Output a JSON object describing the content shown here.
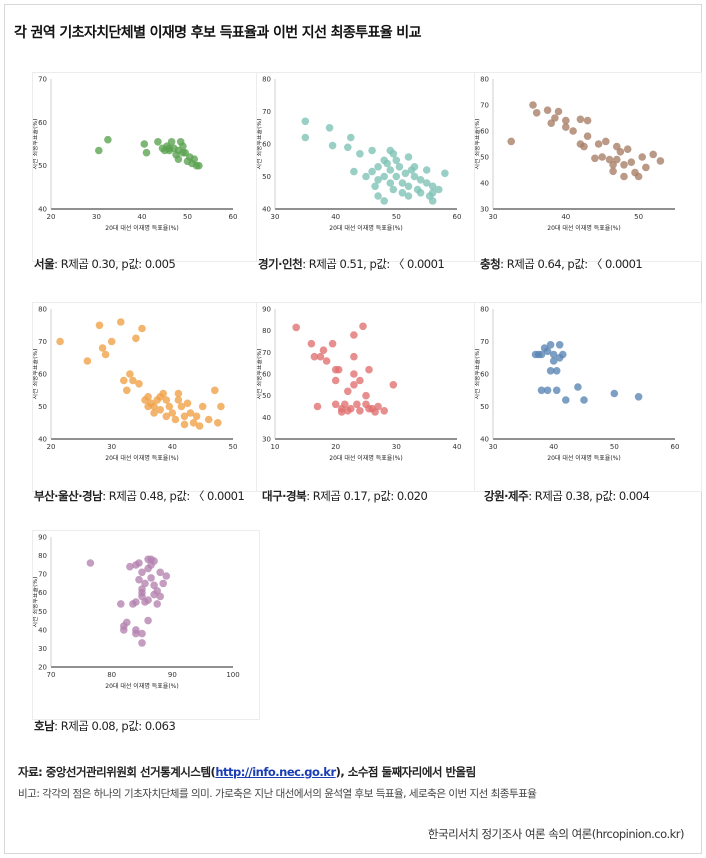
{
  "title": "각 권역 기초자치단체별 이재명 후보 득표율과 이번 지선 최종투표율 비교",
  "source": {
    "prefix": "자료: 중앙선거관리위원회 선거통계시스템(",
    "link": "http://info.nec.go.kr",
    "suffix": "), 소수점 둘째자리에서 반올림"
  },
  "note": "비고: 각각의 점은 하나의 기초자치단체를 의미. 가로축은 지난 대선에서의 윤석열 후보 득표율, 세로축은 이번 지선 최종투표율",
  "credit": "한국리서치 정기조사 여론 속의 여론(hrcopinion.co.kr)",
  "chart_data": [
    {
      "type": "scatter",
      "region": "서울",
      "stat": ": R제곱 0.30, p값: 0.005",
      "color": "#5aa14f",
      "xlabel": "20대 대선 이재명 득표율(%)",
      "ylabel": "지선 최종투표율(%)",
      "xlim": [
        20,
        60
      ],
      "ylim": [
        40,
        70
      ],
      "xticks": [
        20,
        30,
        40,
        50,
        60
      ],
      "yticks": [
        40,
        50,
        60,
        70
      ],
      "points": [
        [
          30.5,
          53.5
        ],
        [
          32.5,
          56
        ],
        [
          40.5,
          55
        ],
        [
          41,
          53
        ],
        [
          43.5,
          55.5
        ],
        [
          44.5,
          54
        ],
        [
          45,
          53.5
        ],
        [
          45.5,
          54.5
        ],
        [
          46,
          54
        ],
        [
          46.5,
          55.5
        ],
        [
          47,
          54
        ],
        [
          47.5,
          52.5
        ],
        [
          48,
          51.5
        ],
        [
          48,
          53.5
        ],
        [
          48.5,
          55.5
        ],
        [
          49,
          54.5
        ],
        [
          49,
          53
        ],
        [
          49.5,
          53
        ],
        [
          50,
          51
        ],
        [
          50.5,
          52
        ],
        [
          51,
          50.5
        ],
        [
          51.5,
          51.5
        ],
        [
          52,
          50
        ],
        [
          52.5,
          50
        ],
        [
          46,
          53.5
        ]
      ]
    },
    {
      "type": "scatter",
      "region": "경기·인천",
      "stat": ": R제곱 0.51, p값: 〈 0.0001",
      "color": "#7ec2b6",
      "xlabel": "20대 대선 이재명 득표율(%)",
      "ylabel": "지선 최종투표율(%)",
      "xlim": [
        30,
        60
      ],
      "ylim": [
        40,
        80
      ],
      "xticks": [
        30,
        40,
        50,
        60
      ],
      "yticks": [
        40,
        50,
        60,
        70,
        80
      ],
      "points": [
        [
          35,
          67
        ],
        [
          35,
          62
        ],
        [
          39,
          65
        ],
        [
          39.5,
          59.5
        ],
        [
          42,
          59
        ],
        [
          42.5,
          62
        ],
        [
          43,
          51.5
        ],
        [
          44,
          57
        ],
        [
          45,
          50
        ],
        [
          46,
          51.5
        ],
        [
          46,
          58
        ],
        [
          46.5,
          47
        ],
        [
          47,
          53
        ],
        [
          47,
          44
        ],
        [
          48,
          55
        ],
        [
          48,
          50
        ],
        [
          48.5,
          54
        ],
        [
          49,
          58
        ],
        [
          49,
          52
        ],
        [
          49,
          48
        ],
        [
          49.5,
          46
        ],
        [
          50,
          55
        ],
        [
          50,
          50
        ],
        [
          50.5,
          53
        ],
        [
          51,
          48
        ],
        [
          51,
          45
        ],
        [
          51.5,
          51
        ],
        [
          52,
          56
        ],
        [
          52,
          47
        ],
        [
          52,
          44
        ],
        [
          52.5,
          52
        ],
        [
          53,
          50
        ],
        [
          53,
          53
        ],
        [
          53.5,
          46
        ],
        [
          54,
          49
        ],
        [
          54,
          45
        ],
        [
          55,
          48
        ],
        [
          55,
          52
        ],
        [
          55.5,
          44
        ],
        [
          56,
          45
        ],
        [
          56,
          47
        ],
        [
          57,
          46
        ],
        [
          58,
          51
        ],
        [
          56,
          42.5
        ],
        [
          49.5,
          57
        ],
        [
          47,
          49
        ],
        [
          48,
          42.5
        ]
      ]
    },
    {
      "type": "scatter",
      "region": "충청",
      "stat": ": R제곱 0.64, p값: 〈 0.0001",
      "color": "#a67c64",
      "xlabel": "20대 대선 이재명 득표율(%)",
      "ylabel": "지선 최종투표율(%)",
      "xlim": [
        30,
        55
      ],
      "ylim": [
        30,
        80
      ],
      "xticks": [
        30,
        40,
        50
      ],
      "yticks": [
        30,
        40,
        50,
        60,
        70,
        80
      ],
      "points": [
        [
          32.5,
          56
        ],
        [
          35.5,
          70
        ],
        [
          36,
          67
        ],
        [
          37.5,
          68
        ],
        [
          38,
          63
        ],
        [
          38.5,
          65
        ],
        [
          39,
          67.5
        ],
        [
          40,
          61.5
        ],
        [
          40,
          64
        ],
        [
          41,
          60
        ],
        [
          42,
          55
        ],
        [
          42,
          64.5
        ],
        [
          42.5,
          54
        ],
        [
          43,
          64
        ],
        [
          43,
          58
        ],
        [
          44,
          49.5
        ],
        [
          44.5,
          55
        ],
        [
          45,
          50
        ],
        [
          45.5,
          56
        ],
        [
          46,
          49
        ],
        [
          46.5,
          47
        ],
        [
          47,
          49
        ],
        [
          47,
          54
        ],
        [
          47.5,
          52
        ],
        [
          48,
          47
        ],
        [
          48,
          42.5
        ],
        [
          48.5,
          53
        ],
        [
          49,
          48
        ],
        [
          49.5,
          44
        ],
        [
          50,
          42.5
        ],
        [
          50.5,
          50
        ],
        [
          51,
          46
        ],
        [
          52,
          51
        ],
        [
          53,
          48.5
        ],
        [
          46.5,
          44.5
        ]
      ]
    },
    {
      "type": "scatter",
      "region": "부산·울산·경남",
      "stat": ": R제곱 0.48, p값: 〈 0.0001",
      "color": "#f0a045",
      "xlabel": "20대 대선 이재명 득표율(%)",
      "ylabel": "지선 최종투표율(%)",
      "xlim": [
        20,
        50
      ],
      "ylim": [
        40,
        80
      ],
      "xticks": [
        20,
        30,
        40,
        50
      ],
      "yticks": [
        40,
        50,
        60,
        70,
        80
      ],
      "points": [
        [
          21.5,
          70
        ],
        [
          26,
          64
        ],
        [
          28,
          75
        ],
        [
          28.5,
          68
        ],
        [
          29,
          66
        ],
        [
          30,
          70
        ],
        [
          31.5,
          76
        ],
        [
          32,
          58
        ],
        [
          32.5,
          55
        ],
        [
          33,
          60
        ],
        [
          33.5,
          58
        ],
        [
          34,
          71
        ],
        [
          34.5,
          57
        ],
        [
          35,
          74
        ],
        [
          35.5,
          52
        ],
        [
          36,
          53
        ],
        [
          36,
          50
        ],
        [
          36.5,
          51
        ],
        [
          37,
          50
        ],
        [
          37,
          48
        ],
        [
          37.5,
          52
        ],
        [
          38,
          49
        ],
        [
          38.5,
          54
        ],
        [
          39,
          47
        ],
        [
          39,
          52
        ],
        [
          39.5,
          50
        ],
        [
          40,
          48
        ],
        [
          40.5,
          46
        ],
        [
          41,
          54
        ],
        [
          41.5,
          50
        ],
        [
          42,
          47
        ],
        [
          42,
          44.5
        ],
        [
          42.5,
          51
        ],
        [
          43,
          48
        ],
        [
          43.5,
          45
        ],
        [
          44,
          47
        ],
        [
          44.5,
          44
        ],
        [
          45,
          50
        ],
        [
          46,
          46
        ],
        [
          47,
          55
        ],
        [
          47.5,
          45
        ],
        [
          48,
          50
        ],
        [
          38,
          53
        ],
        [
          41,
          52
        ]
      ]
    },
    {
      "type": "scatter",
      "region": "대구·경북",
      "stat": ": R제곱 0.17, p값: 0.020",
      "color": "#e07070",
      "xlabel": "20대 대선 이재명 득표율(%)",
      "ylabel": "지선 최종투표율(%)",
      "xlim": [
        10,
        40
      ],
      "ylim": [
        30,
        90
      ],
      "xticks": [
        10,
        20,
        30,
        40
      ],
      "yticks": [
        30,
        40,
        50,
        60,
        70,
        80,
        90
      ],
      "points": [
        [
          13.5,
          81.5
        ],
        [
          16,
          74
        ],
        [
          16.5,
          68
        ],
        [
          17,
          45
        ],
        [
          17.5,
          68
        ],
        [
          18,
          71
        ],
        [
          18.5,
          66
        ],
        [
          19.5,
          74
        ],
        [
          20,
          62
        ],
        [
          20,
          57
        ],
        [
          20.5,
          62
        ],
        [
          21,
          44
        ],
        [
          21,
          42.5
        ],
        [
          21.5,
          46
        ],
        [
          22,
          43
        ],
        [
          22.5,
          44
        ],
        [
          23,
          68
        ],
        [
          23,
          60
        ],
        [
          23.5,
          46
        ],
        [
          23,
          78
        ],
        [
          24,
          43
        ],
        [
          24,
          57
        ],
        [
          24.5,
          82
        ],
        [
          25,
          50
        ],
        [
          25,
          46
        ],
        [
          25.5,
          44
        ],
        [
          25.5,
          62
        ],
        [
          26,
          44
        ],
        [
          26.5,
          42.5
        ],
        [
          27,
          45
        ],
        [
          28,
          43
        ],
        [
          29.5,
          55
        ],
        [
          22,
          52
        ],
        [
          23,
          55
        ],
        [
          20,
          46
        ]
      ]
    },
    {
      "type": "scatter",
      "region": "강원·제주",
      "stat": ": R제곱 0.38, p값: 0.004",
      "color": "#5a84b4",
      "xlabel": "20대 대선 이재명 득표율(%)",
      "ylabel": "지선 최종투표율(%)",
      "xlim": [
        30,
        60
      ],
      "ylim": [
        40,
        80
      ],
      "xticks": [
        30,
        40,
        50,
        60
      ],
      "yticks": [
        40,
        50,
        60,
        70,
        80
      ],
      "points": [
        [
          37,
          66
        ],
        [
          37.5,
          66
        ],
        [
          38,
          66
        ],
        [
          38.5,
          68
        ],
        [
          39,
          67
        ],
        [
          39,
          55
        ],
        [
          39.5,
          69
        ],
        [
          40,
          64
        ],
        [
          40,
          66
        ],
        [
          40.5,
          61
        ],
        [
          41,
          69
        ],
        [
          41,
          65
        ],
        [
          41.5,
          66
        ],
        [
          40.5,
          55
        ],
        [
          42,
          52
        ],
        [
          44,
          56
        ],
        [
          45,
          52
        ],
        [
          50,
          54
        ],
        [
          54,
          53
        ],
        [
          38,
          55
        ],
        [
          39.5,
          61
        ]
      ]
    },
    {
      "type": "scatter",
      "region": "호남",
      "stat": ": R제곱 0.08, p값: 0.063",
      "color": "#b482b0",
      "xlabel": "20대 대선 이재명 득표율(%)",
      "ylabel": "지선 최종투표율(%)",
      "xlim": [
        70,
        100
      ],
      "ylim": [
        20,
        90
      ],
      "xticks": [
        70,
        80,
        90,
        100
      ],
      "yticks": [
        20,
        30,
        40,
        50,
        60,
        70,
        80,
        90
      ],
      "points": [
        [
          76.5,
          76
        ],
        [
          81.5,
          54
        ],
        [
          82,
          40
        ],
        [
          82,
          42
        ],
        [
          82.5,
          44
        ],
        [
          83,
          74
        ],
        [
          83.5,
          54
        ],
        [
          84,
          75
        ],
        [
          84,
          40
        ],
        [
          84.5,
          76
        ],
        [
          84.5,
          67
        ],
        [
          85,
          60
        ],
        [
          85,
          58
        ],
        [
          85,
          71
        ],
        [
          85.5,
          55
        ],
        [
          85.5,
          65
        ],
        [
          86,
          73
        ],
        [
          86,
          56
        ],
        [
          86,
          78
        ],
        [
          86,
          45
        ],
        [
          86.5,
          68
        ],
        [
          86.5,
          78
        ],
        [
          87,
          77
        ],
        [
          87,
          64
        ],
        [
          87.5,
          54
        ],
        [
          87.5,
          61
        ],
        [
          88,
          71
        ],
        [
          88,
          58
        ],
        [
          88.5,
          65
        ],
        [
          89,
          69
        ],
        [
          85,
          33
        ],
        [
          84,
          38
        ],
        [
          85,
          38
        ],
        [
          86.5,
          75
        ],
        [
          87,
          59
        ],
        [
          85,
          62
        ],
        [
          84,
          55
        ]
      ]
    }
  ]
}
